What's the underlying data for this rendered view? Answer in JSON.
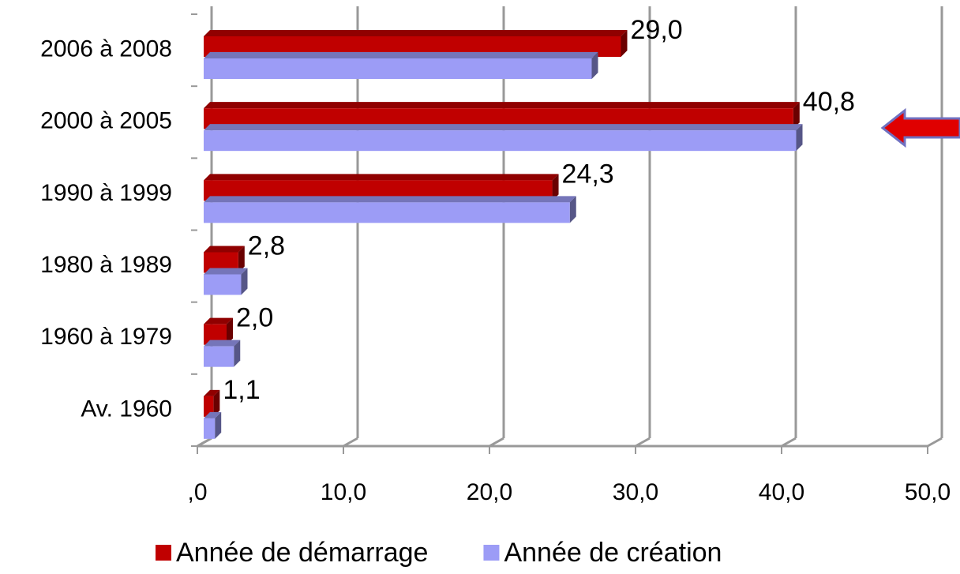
{
  "chart_data": {
    "type": "bar",
    "orientation": "horizontal",
    "categories": [
      "2006 à 2008",
      "2000 à 2005",
      "1990 à 1999",
      "1980 à 1989",
      "1960 à 1979",
      "Av. 1960"
    ],
    "series": [
      {
        "name": "Année de démarrage",
        "color": "#c00000",
        "values": [
          29.0,
          40.8,
          24.3,
          2.8,
          2.0,
          1.1
        ],
        "value_labels": [
          "29,0",
          "40,8",
          "24,3",
          "2,8",
          "2,0",
          "1,1"
        ]
      },
      {
        "name": "Année de création",
        "color": "#9c9cf6",
        "values": [
          27.0,
          41.0,
          25.5,
          3.0,
          2.5,
          1.2
        ]
      }
    ],
    "xlim": [
      0,
      50
    ],
    "xticks": [
      {
        "value": 0,
        "label": ",0"
      },
      {
        "value": 10,
        "label": "10,0"
      },
      {
        "value": 20,
        "label": "20,0"
      },
      {
        "value": 30,
        "label": "30,0"
      },
      {
        "value": 40,
        "label": "40,0"
      },
      {
        "value": 50,
        "label": "50,0"
      }
    ],
    "grid": true,
    "legend": "bottom"
  }
}
